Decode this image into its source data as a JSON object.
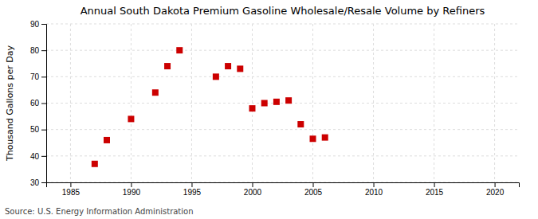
{
  "chart_data": {
    "type": "scatter",
    "title": "Annual South Dakota Premium Gasoline Wholesale/Resale Volume by Refiners",
    "ylabel": "Thousand Gallons per Day",
    "annotations": [
      "Source: U.S. Energy Information Administration"
    ],
    "x": [
      1987,
      1988,
      1990,
      1992,
      1993,
      1994,
      1997,
      1998,
      1999,
      2000,
      2001,
      2002,
      2003,
      2004,
      2005,
      2006
    ],
    "values": [
      37.0,
      46.0,
      54.0,
      64.0,
      74.0,
      80.0,
      70.0,
      74.0,
      73.0,
      58.0,
      60.0,
      60.5,
      61.0,
      52.0,
      46.5,
      47.0
    ],
    "color": "#cc0000",
    "marker": "square",
    "xlim": [
      1983,
      2022
    ],
    "ylim": [
      30,
      90
    ],
    "xticks": [
      1985,
      1990,
      1995,
      2000,
      2005,
      2010,
      2015,
      2020
    ],
    "yticks": [
      30,
      40,
      50,
      60,
      70,
      80,
      90
    ],
    "grid": true
  }
}
